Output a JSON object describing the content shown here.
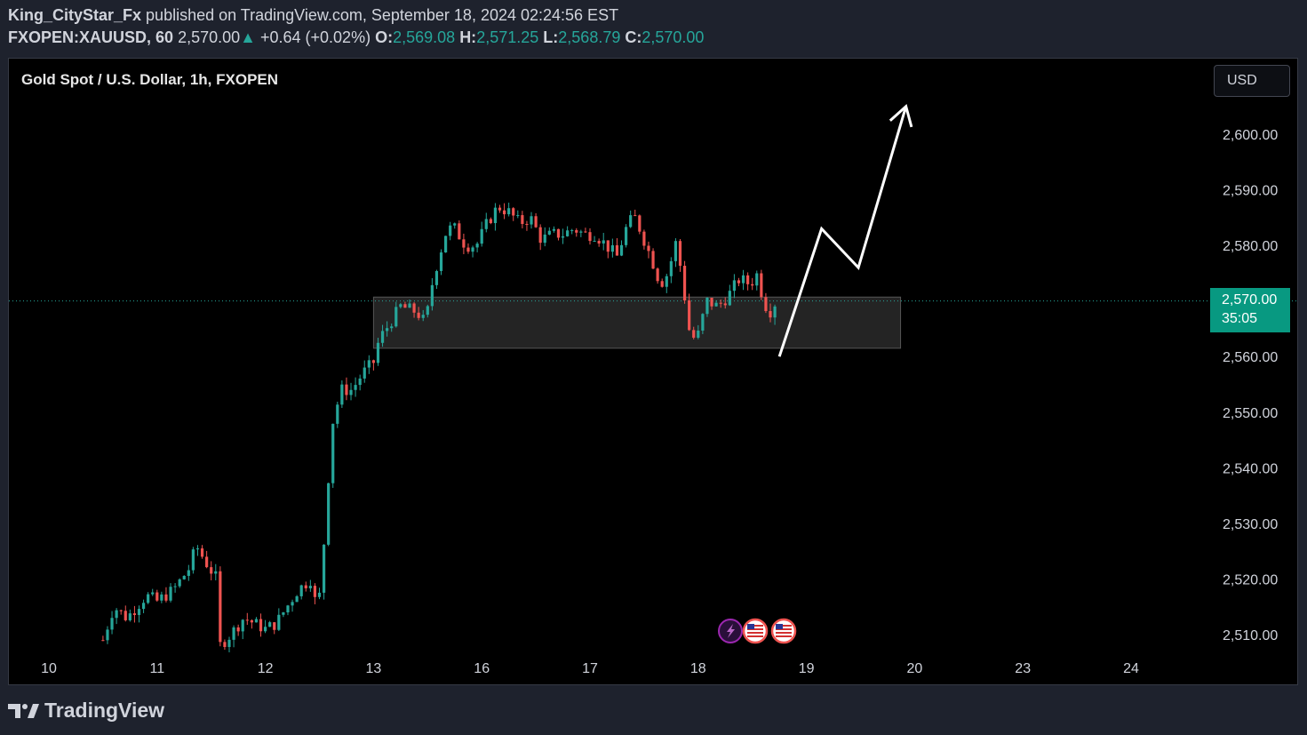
{
  "header": {
    "author": "King_CityStar_Fx",
    "published_text": " published on TradingView.com, September 18, 2024 02:24:56 EST",
    "symbol_interval": "FXOPEN:XAUUSD, 60",
    "last_price": "2,570.00",
    "change_arrow": "▲",
    "change": "+0.64 (+0.02%)",
    "o_label": "O:",
    "o_value": "2,569.08",
    "h_label": "H:",
    "h_value": "2,571.25",
    "l_label": "L:",
    "l_value": "2,568.79",
    "c_label": "C:",
    "c_value": "2,570.00"
  },
  "chart": {
    "title": "Gold Spot / U.S. Dollar, 1h, FXOPEN",
    "currency_button": "USD",
    "price_tag_value": "2,570.00",
    "price_tag_countdown": "35:05",
    "event_icons": [
      "lightning-icon",
      "us-flag-icon",
      "us-flag-icon"
    ]
  },
  "colors": {
    "up": "#26a69a",
    "down": "#ef5350",
    "background": "#000000",
    "zone": "#2a2a2a",
    "arrow": "#ffffff",
    "price_tag": "#089981"
  },
  "footer": {
    "brand": "TradingView"
  },
  "chart_data": {
    "type": "candlestick",
    "symbol": "FXOPEN:XAUUSD",
    "interval": "1h",
    "x_ticks": [
      "10",
      "11",
      "12",
      "13",
      "16",
      "17",
      "18",
      "19",
      "20",
      "23",
      "24"
    ],
    "y_ticks": [
      "2,600.00",
      "2,590.00",
      "2,580.00",
      "2,570.00",
      "2,560.00",
      "2,550.00",
      "2,540.00",
      "2,530.00",
      "2,520.00",
      "2,510.00"
    ],
    "y_tick_values": [
      2600,
      2590,
      2580,
      2570,
      2560,
      2550,
      2540,
      2530,
      2520,
      2510
    ],
    "ylim": [
      2507,
      2612
    ],
    "x_day_range": [
      0,
      10.8
    ],
    "current_price": 2570.0,
    "close_path": [
      [
        0.5,
        2509
      ],
      [
        0.6,
        2515
      ],
      [
        0.72,
        2513
      ],
      [
        0.9,
        2517
      ],
      [
        1.0,
        2516
      ],
      [
        1.15,
        2518
      ],
      [
        1.3,
        2522
      ],
      [
        1.36,
        2526
      ],
      [
        1.45,
        2523
      ],
      [
        1.55,
        2520
      ],
      [
        1.58,
        2508
      ],
      [
        1.68,
        2510
      ],
      [
        1.8,
        2513
      ],
      [
        1.9,
        2512
      ],
      [
        2.0,
        2511
      ],
      [
        2.1,
        2512
      ],
      [
        2.2,
        2515
      ],
      [
        2.3,
        2518
      ],
      [
        2.42,
        2520
      ],
      [
        2.48,
        2514
      ],
      [
        2.52,
        2520
      ],
      [
        2.56,
        2532
      ],
      [
        2.62,
        2548
      ],
      [
        2.7,
        2554
      ],
      [
        2.8,
        2554
      ],
      [
        2.9,
        2557
      ],
      [
        3.0,
        2559
      ],
      [
        3.05,
        2563
      ],
      [
        3.15,
        2566
      ],
      [
        3.25,
        2569
      ],
      [
        3.4,
        2568
      ],
      [
        3.48,
        2566
      ],
      [
        3.55,
        2574
      ],
      [
        3.62,
        2579
      ],
      [
        3.68,
        2583
      ],
      [
        3.75,
        2583
      ],
      [
        3.85,
        2580
      ],
      [
        3.95,
        2580
      ],
      [
        4.05,
        2584
      ],
      [
        4.15,
        2587
      ],
      [
        4.25,
        2586
      ],
      [
        4.35,
        2584
      ],
      [
        4.45,
        2585
      ],
      [
        4.55,
        2581
      ],
      [
        4.65,
        2582
      ],
      [
        4.75,
        2582
      ],
      [
        4.85,
        2583
      ],
      [
        4.95,
        2582
      ],
      [
        5.05,
        2582
      ],
      [
        5.15,
        2580
      ],
      [
        5.25,
        2578
      ],
      [
        5.35,
        2584
      ],
      [
        5.42,
        2585
      ],
      [
        5.5,
        2581
      ],
      [
        5.58,
        2577
      ],
      [
        5.65,
        2573
      ],
      [
        5.72,
        2575
      ],
      [
        5.8,
        2581
      ],
      [
        5.88,
        2570
      ],
      [
        5.93,
        2563
      ],
      [
        6.0,
        2564
      ],
      [
        6.08,
        2570
      ],
      [
        6.18,
        2569
      ],
      [
        6.28,
        2571
      ],
      [
        6.38,
        2574
      ],
      [
        6.48,
        2573
      ],
      [
        6.55,
        2575
      ],
      [
        6.6,
        2570
      ],
      [
        6.66,
        2568
      ],
      [
        6.72,
        2570
      ]
    ],
    "zone": {
      "x": [
        3.0,
        7.87
      ],
      "y": [
        2561.5,
        2570.7
      ]
    },
    "projection": [
      [
        6.75,
        2560
      ],
      [
        7.14,
        2583
      ],
      [
        7.48,
        2576
      ],
      [
        7.92,
        2605
      ]
    ]
  }
}
